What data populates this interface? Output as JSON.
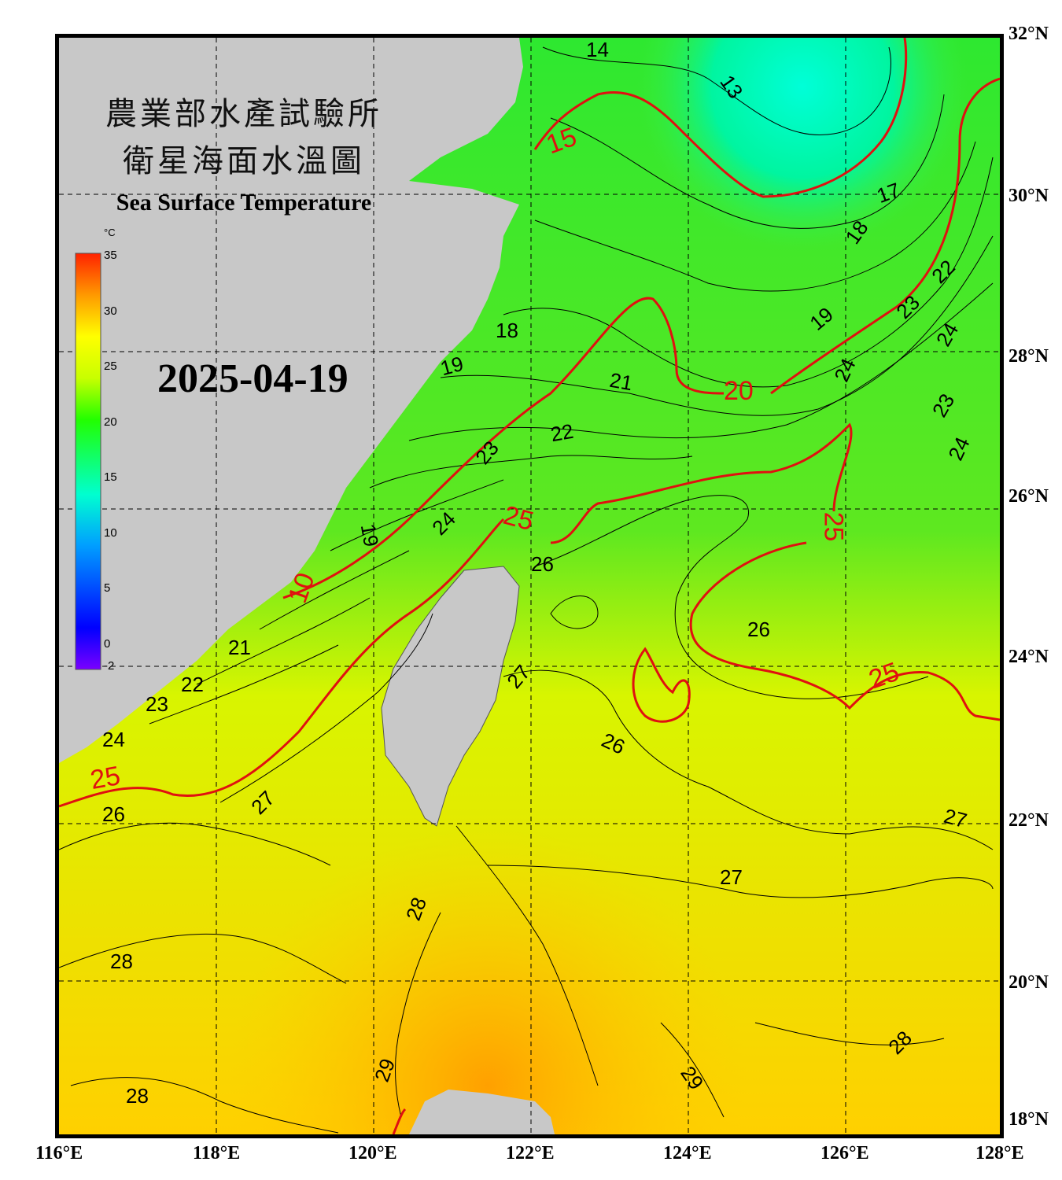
{
  "title_cn_line1": "農業部水產試驗所",
  "title_cn_line2": "衛星海面水溫圖",
  "title_en": "Sea Surface Temperature",
  "date": "2025-04-19",
  "colorbar": {
    "unit": "°C",
    "min": -2,
    "max": 35,
    "ticks": [
      "35",
      "30",
      "25",
      "20",
      "15",
      "10",
      "5",
      "0",
      "-2"
    ]
  },
  "longitude_labels": [
    "116°E",
    "118°E",
    "120°E",
    "122°E",
    "124°E",
    "126°E",
    "128°E"
  ],
  "latitude_labels": [
    "32°N",
    "30°N",
    "28°N",
    "26°N",
    "24°N",
    "22°N",
    "20°N",
    "18°N"
  ],
  "contour_labels_black": [
    "14",
    "13",
    "17",
    "18",
    "18",
    "19",
    "19",
    "19",
    "21",
    "21",
    "22",
    "22",
    "22",
    "23",
    "23",
    "23",
    "23",
    "24",
    "24",
    "24",
    "24",
    "24",
    "26",
    "26",
    "26",
    "26",
    "27",
    "27",
    "27",
    "27",
    "28",
    "28",
    "28",
    "28",
    "29",
    "29"
  ],
  "contour_labels_red": [
    "15",
    "20",
    "25",
    "25",
    "25",
    "25",
    "10"
  ]
}
